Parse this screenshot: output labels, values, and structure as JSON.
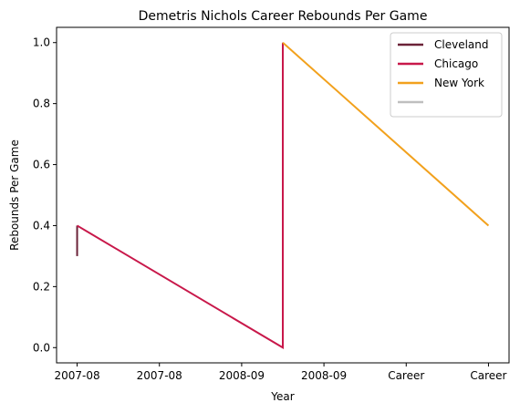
{
  "chart_data": {
    "type": "line",
    "title": "Demetris Nichols Career Rebounds Per Game",
    "xlabel": "Year",
    "ylabel": "Rebounds Per Game",
    "x_tick_labels": [
      "2007-08",
      "2007-08",
      "2008-09",
      "2008-09",
      "Career",
      "Career"
    ],
    "x_range": [
      -0.2,
      4.2
    ],
    "y_ticks": [
      "0.0",
      "0.2",
      "0.4",
      "0.6",
      "0.8",
      "1.0"
    ],
    "ylim": [
      -0.05,
      1.05
    ],
    "grid": false,
    "legend_position": "top-right",
    "series": [
      {
        "name": "Cleveland",
        "color": "#6b2338",
        "x": [
          0,
          0
        ],
        "y": [
          0.3,
          0.4
        ]
      },
      {
        "name": "Chicago",
        "color": "#c8184a",
        "x": [
          0,
          2,
          2
        ],
        "y": [
          0.4,
          0.0,
          1.0
        ]
      },
      {
        "name": "New York",
        "color": "#f2a11d",
        "x": [
          2,
          4
        ],
        "y": [
          1.0,
          0.4
        ]
      },
      {
        "name": "",
        "color": "#bfbfbf",
        "x": [],
        "y": []
      }
    ]
  }
}
